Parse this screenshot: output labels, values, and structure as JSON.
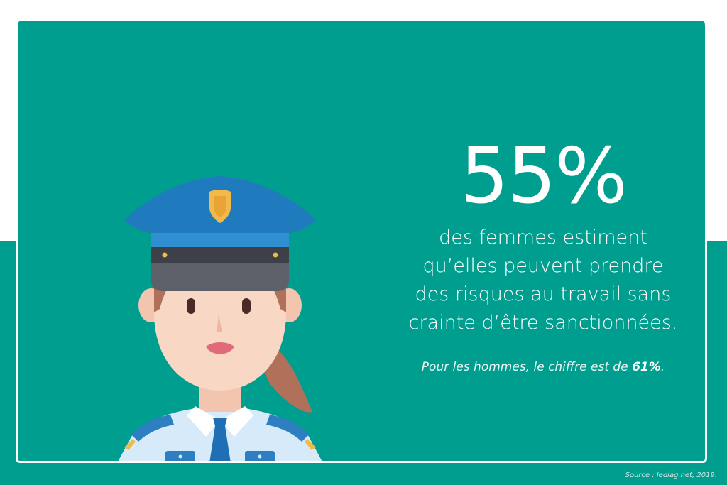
{
  "stat": {
    "value": "55%",
    "description_lines": [
      "des femmes estiment",
      "qu’elles peuvent prendre",
      "des risques au travail sans",
      "crainte d’être sanctionnées."
    ],
    "note_prefix": "Pour les hommes, le chiffre est de ",
    "note_value": "61%",
    "note_suffix": "."
  },
  "source": "Source : lediag.net, 2019.",
  "illustration": {
    "icon": "policewoman-icon"
  },
  "colors": {
    "teal": "#009e8e",
    "white": "#ffffff",
    "cap_blue": "#1f7bbd",
    "badge_gold": "#f2b94b",
    "skin": "#f9d7c5",
    "hair": "#b0705a",
    "shirt": "#d6eaf9",
    "tie": "#1f6fb5"
  }
}
